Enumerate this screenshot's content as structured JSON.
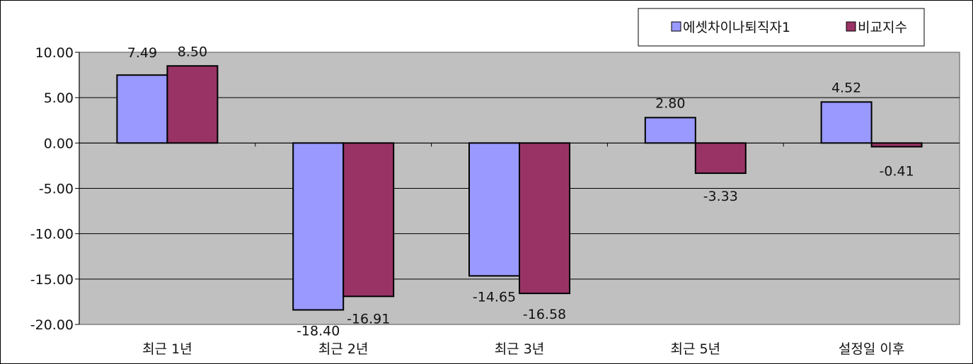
{
  "chart_data": {
    "type": "bar",
    "categories": [
      "최근 1년",
      "최근 2년",
      "최근 3년",
      "최근 5년",
      "설정일 이후"
    ],
    "series": [
      {
        "name": "에셋차이나퇴직자1",
        "values": [
          7.49,
          -18.4,
          -14.65,
          2.8,
          4.52
        ],
        "labels": [
          "7.49",
          "-18.40",
          "-14.65",
          "2.80",
          "4.52"
        ],
        "color": "#9999FF"
      },
      {
        "name": "비교지수",
        "values": [
          8.5,
          -16.91,
          -16.58,
          -3.33,
          -0.41
        ],
        "labels": [
          "8.50",
          "-16.91",
          "-16.58",
          "-3.33",
          "-0.41"
        ],
        "color": "#993366"
      }
    ],
    "ylim": [
      -20,
      10
    ],
    "yticks": [
      10,
      5,
      0,
      -5,
      -10,
      -15,
      -20
    ],
    "ytick_labels": [
      "10.00",
      "5.00",
      "0.00",
      "-5.00",
      "-10.00",
      "-15.00",
      "-20.00"
    ],
    "grid": true,
    "plot_background": "#C0C0C0",
    "legend_position": "top-right",
    "title": "",
    "xlabel": "",
    "ylabel": ""
  }
}
